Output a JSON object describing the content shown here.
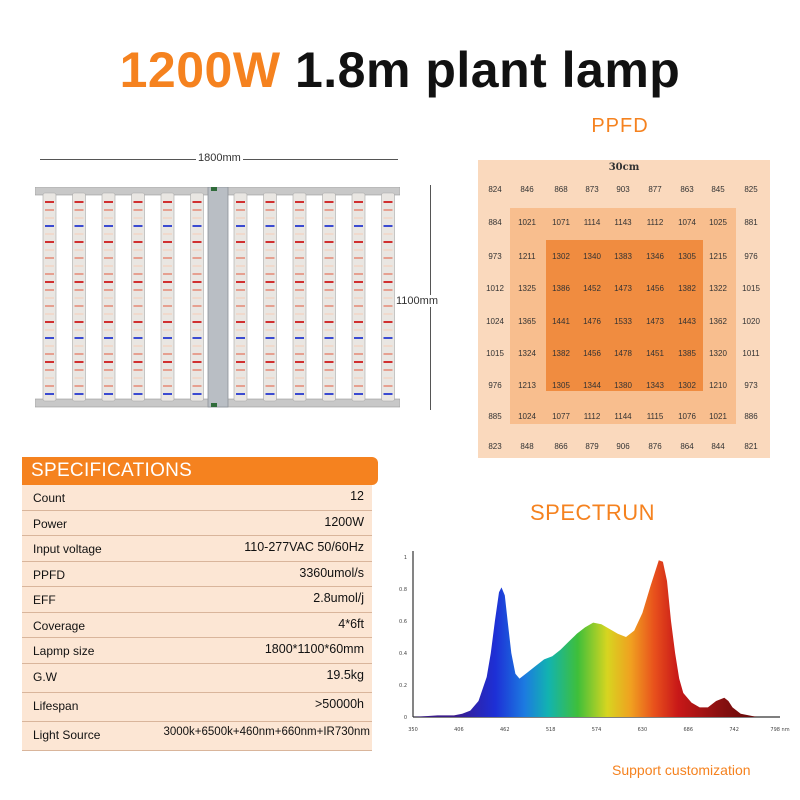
{
  "title": {
    "power": "1200W",
    "rest": "1.8m plant lamp"
  },
  "lamp": {
    "width_label": "1800mm",
    "height_label": "1100mm",
    "bar_count": 12
  },
  "ppfd": {
    "title": "PPFD",
    "label": "30cm",
    "grid": [
      [
        "824",
        "846",
        "868",
        "873",
        "903",
        "877",
        "863",
        "845",
        "825"
      ],
      [
        "884",
        "1021",
        "1071",
        "1114",
        "1143",
        "1112",
        "1074",
        "1025",
        "881"
      ],
      [
        "973",
        "1211",
        "1302",
        "1340",
        "1383",
        "1346",
        "1305",
        "1215",
        "976"
      ],
      [
        "1012",
        "1325",
        "1386",
        "1452",
        "1473",
        "1456",
        "1382",
        "1322",
        "1015"
      ],
      [
        "1024",
        "1365",
        "1441",
        "1476",
        "1533",
        "1473",
        "1443",
        "1362",
        "1020"
      ],
      [
        "1015",
        "1324",
        "1382",
        "1456",
        "1478",
        "1451",
        "1385",
        "1320",
        "1011"
      ],
      [
        "976",
        "1213",
        "1305",
        "1344",
        "1380",
        "1343",
        "1302",
        "1210",
        "973"
      ],
      [
        "885",
        "1024",
        "1077",
        "1112",
        "1144",
        "1115",
        "1076",
        "1021",
        "886"
      ],
      [
        "823",
        "848",
        "866",
        "879",
        "906",
        "876",
        "864",
        "844",
        "821"
      ]
    ]
  },
  "specs": {
    "header": "SPECIFICATIONS",
    "rows": [
      {
        "key": "Count",
        "value": "12"
      },
      {
        "key": "Power",
        "value": "1200W"
      },
      {
        "key": "Input voltage",
        "value": "110-277VAC 50/60Hz"
      },
      {
        "key": "PPFD",
        "value": "3360umol/s"
      },
      {
        "key": "EFF",
        "value": "2.8umol/j"
      },
      {
        "key": "Coverage",
        "value": "4*6ft"
      },
      {
        "key": "Lapmp size",
        "value": "1800*1100*60mm"
      },
      {
        "key": "G.W",
        "value": "19.5kg"
      },
      {
        "key": "Lifespan",
        "value": ">50000h"
      },
      {
        "key": "Light Source",
        "value": "3000k+6500k+460nm+660nm+IR730nm"
      }
    ]
  },
  "spectrum": {
    "title": "SPECTRUN",
    "x_ticks": [
      "350",
      "406",
      "462",
      "518",
      "574",
      "630",
      "686",
      "742",
      "798 nm"
    ],
    "y_ticks": [
      "0",
      "0.2",
      "0.4",
      "0.6",
      "0.8",
      "1"
    ],
    "curve": {
      "x": [
        350,
        380,
        400,
        410,
        420,
        430,
        440,
        445,
        450,
        455,
        458,
        462,
        466,
        470,
        475,
        480,
        490,
        500,
        510,
        520,
        530,
        540,
        550,
        560,
        570,
        580,
        590,
        600,
        610,
        620,
        630,
        640,
        650,
        655,
        660,
        665,
        670,
        675,
        680,
        690,
        700,
        710,
        720,
        730,
        735,
        740,
        750,
        760,
        770,
        780
      ],
      "y": [
        0,
        0.01,
        0.01,
        0.02,
        0.04,
        0.1,
        0.25,
        0.4,
        0.6,
        0.78,
        0.81,
        0.76,
        0.58,
        0.4,
        0.27,
        0.24,
        0.28,
        0.32,
        0.36,
        0.38,
        0.42,
        0.47,
        0.52,
        0.56,
        0.59,
        0.58,
        0.55,
        0.52,
        0.5,
        0.54,
        0.65,
        0.82,
        0.98,
        0.97,
        0.85,
        0.6,
        0.4,
        0.24,
        0.15,
        0.09,
        0.06,
        0.06,
        0.1,
        0.12,
        0.1,
        0.06,
        0.02,
        0.01,
        0,
        0
      ]
    },
    "xlim": [
      350,
      798
    ],
    "ylim": [
      0,
      1
    ]
  },
  "footer": {
    "support": "Support customization"
  },
  "colors": {
    "accent": "#f5821f",
    "table_bg": "#fce6d4",
    "ppfd_outer": "#fad9bd",
    "ppfd_mid": "#f8be8e",
    "ppfd_inner": "#f08c40"
  }
}
